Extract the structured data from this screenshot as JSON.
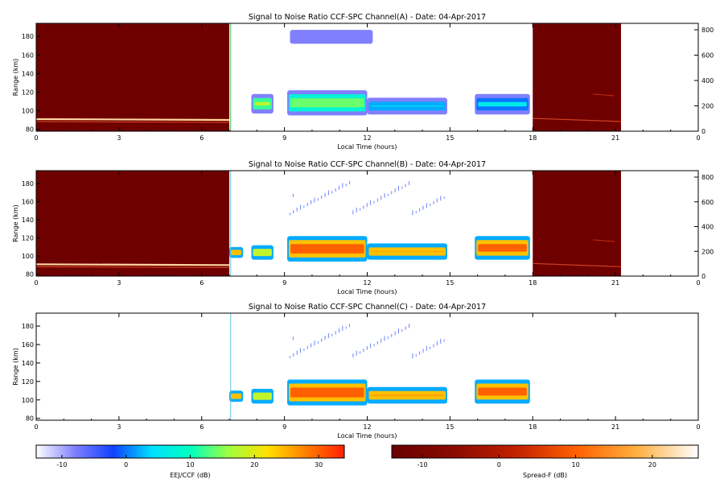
{
  "chart_data": [
    {
      "type": "heatmap",
      "title": "Signal to Noise Ratio CCF-SPC Channel(A) - Date: 04-Apr-2017",
      "xlabel": "Local Time (hours)",
      "ylabel": "Range (km)",
      "xlim": [
        0,
        24
      ],
      "ylim": [
        78,
        194
      ],
      "xticks": [
        "0",
        "3",
        "6",
        "9",
        "12",
        "15",
        "18",
        "21",
        "0"
      ],
      "yticks": [
        "80",
        "100",
        "120",
        "140",
        "160",
        "180"
      ],
      "y2ticks": [
        "0",
        "200",
        "400",
        "600",
        "800"
      ],
      "spread_f_intervals": [
        [
          0,
          7.0
        ],
        [
          18.0,
          21.2
        ]
      ],
      "eej_segments": [
        {
          "t0": 7.8,
          "t1": 8.6,
          "r0": 97,
          "r1": 118,
          "snr": 18
        },
        {
          "t0": 9.1,
          "t1": 12.0,
          "r0": 95,
          "r1": 122,
          "snr": 14
        },
        {
          "t0": 12.0,
          "t1": 14.9,
          "r0": 96,
          "r1": 114,
          "snr": 8
        },
        {
          "t0": 15.9,
          "t1": 17.9,
          "r0": 96,
          "r1": 118,
          "snr": 6
        },
        {
          "t0": 9.2,
          "t1": 12.2,
          "r0": 172,
          "r1": 187,
          "snr": -2
        }
      ]
    },
    {
      "type": "heatmap",
      "title": "Signal to Noise Ratio CCF-SPC Channel(B) - Date: 04-Apr-2017",
      "xlabel": "Local Time (hours)",
      "ylabel": "Range (km)",
      "xlim": [
        0,
        24
      ],
      "ylim": [
        78,
        194
      ],
      "xticks": [
        "0",
        "3",
        "6",
        "9",
        "12",
        "15",
        "18",
        "21",
        "0"
      ],
      "yticks": [
        "80",
        "100",
        "120",
        "140",
        "160",
        "180"
      ],
      "y2ticks": [
        "0",
        "200",
        "400",
        "600",
        "800"
      ],
      "spread_f_intervals": [
        [
          0,
          7.0
        ],
        [
          18.0,
          21.2
        ]
      ],
      "eej_segments": [
        {
          "t0": 7.0,
          "t1": 7.5,
          "r0": 98,
          "r1": 110,
          "snr": 30
        },
        {
          "t0": 7.8,
          "t1": 8.6,
          "r0": 96,
          "r1": 112,
          "snr": 24
        },
        {
          "t0": 9.1,
          "t1": 12.0,
          "r0": 94,
          "r1": 122,
          "snr": 30
        },
        {
          "t0": 12.0,
          "t1": 14.9,
          "r0": 96,
          "r1": 114,
          "snr": 30
        },
        {
          "t0": 15.9,
          "t1": 17.9,
          "r0": 96,
          "r1": 122,
          "snr": 30
        }
      ]
    },
    {
      "type": "heatmap",
      "title": "Signal to Noise Ratio CCF-SPC Channel(C) - Date: 04-Apr-2017",
      "xlabel": "Local Time (hours)",
      "ylabel": "Range (km)",
      "xlim": [
        0,
        24
      ],
      "ylim": [
        78,
        194
      ],
      "xticks": [
        "0",
        "3",
        "6",
        "9",
        "12",
        "15",
        "18",
        "21",
        "0"
      ],
      "yticks": [
        "80",
        "100",
        "120",
        "140",
        "160",
        "180"
      ],
      "eej_segments": [
        {
          "t0": 7.0,
          "t1": 7.5,
          "r0": 98,
          "r1": 110,
          "snr": 30
        },
        {
          "t0": 7.8,
          "t1": 8.6,
          "r0": 96,
          "r1": 112,
          "snr": 24
        },
        {
          "t0": 9.1,
          "t1": 12.0,
          "r0": 94,
          "r1": 122,
          "snr": 30
        },
        {
          "t0": 12.0,
          "t1": 14.9,
          "r0": 96,
          "r1": 114,
          "snr": 30
        },
        {
          "t0": 15.9,
          "t1": 17.9,
          "r0": 96,
          "r1": 122,
          "snr": 30
        }
      ]
    }
  ],
  "colorbars": [
    {
      "label": "EEJ/CCF (dB)",
      "ticks": [
        "-10",
        "0",
        "10",
        "20",
        "30"
      ],
      "range": [
        -14,
        34
      ],
      "colors": [
        "#ffffff",
        "#8080ff",
        "#1040ff",
        "#00e0ff",
        "#00ffc0",
        "#a0ff40",
        "#ffe000",
        "#ff8000",
        "#ff2000"
      ]
    },
    {
      "label": "Spread-F (dB)",
      "ticks": [
        "-10",
        "0",
        "10",
        "20"
      ],
      "range": [
        -14,
        26
      ],
      "colors": [
        "#6a0000",
        "#8a0a00",
        "#c02000",
        "#ff6000",
        "#ffb040",
        "#ffffff"
      ]
    }
  ]
}
